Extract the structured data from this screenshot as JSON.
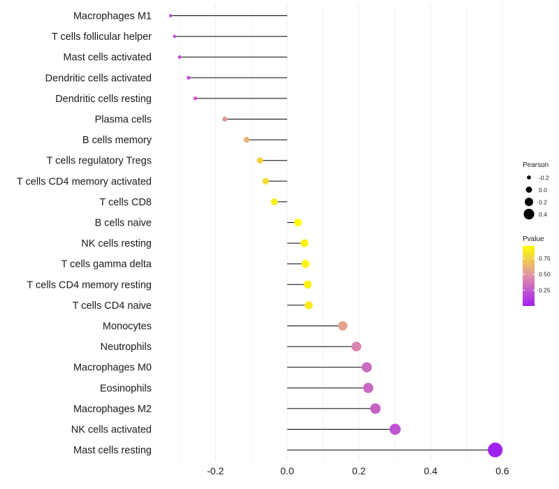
{
  "chart_data": {
    "type": "lollipop",
    "title": "",
    "xlabel": "",
    "ylabel": "",
    "xlim": [
      -0.32,
      0.62
    ],
    "x_ticks": [
      -0.2,
      0.0,
      0.2,
      0.4,
      0.6
    ],
    "x_tick_labels": [
      "-0.2",
      "0.0",
      "0.2",
      "0.4",
      "0.6"
    ],
    "grid": true,
    "categories": [
      "Macrophages M1",
      "T cells follicular helper",
      "Mast cells activated",
      "Dendritic cells activated",
      "Dendritic cells resting",
      "Plasma cells",
      "B cells memory",
      "T cells regulatory  Tregs",
      "T cells CD4 memory activated",
      "T cells CD8",
      "B cells naive",
      "NK cells resting",
      "T cells gamma delta",
      "T cells CD4 memory resting",
      "T cells CD4 naive",
      "Monocytes",
      "Neutrophils",
      "Macrophages M0",
      "Eosinophils",
      "Macrophages M2",
      "NK cells activated",
      "Mast cells resting"
    ],
    "pearson": [
      -0.325,
      -0.314,
      -0.3,
      -0.275,
      -0.256,
      -0.174,
      -0.113,
      -0.076,
      -0.06,
      -0.036,
      0.03,
      0.048,
      0.051,
      0.057,
      0.06,
      0.155,
      0.193,
      0.222,
      0.226,
      0.246,
      0.301,
      0.58
    ],
    "pvalue": [
      0.15,
      0.18,
      0.2,
      0.24,
      0.28,
      0.52,
      0.62,
      0.75,
      0.8,
      0.88,
      0.95,
      0.9,
      0.89,
      0.88,
      0.87,
      0.55,
      0.42,
      0.32,
      0.31,
      0.28,
      0.22,
      0.01
    ],
    "legend": {
      "size_title": "Pearson",
      "size_entries": [
        {
          "label": "-0.2",
          "value": -0.2
        },
        {
          "label": "0.0",
          "value": 0.0
        },
        {
          "label": "0.2",
          "value": 0.2
        },
        {
          "label": "0.4",
          "value": 0.4
        }
      ],
      "color_title": "Pvalue",
      "color_ticks": [
        {
          "label": "0.75",
          "value": 0.75
        },
        {
          "label": "0.50",
          "value": 0.5
        },
        {
          "label": "0.25",
          "value": 0.25
        }
      ],
      "color_range": [
        0.0,
        0.95
      ],
      "placement": "right"
    },
    "colors": {
      "low": "#A020F0",
      "mid": "#E090A8",
      "high": "#FFFF00",
      "stem": "#000000",
      "grid": "#EBEBEB",
      "text": "#1a1a1a"
    }
  }
}
